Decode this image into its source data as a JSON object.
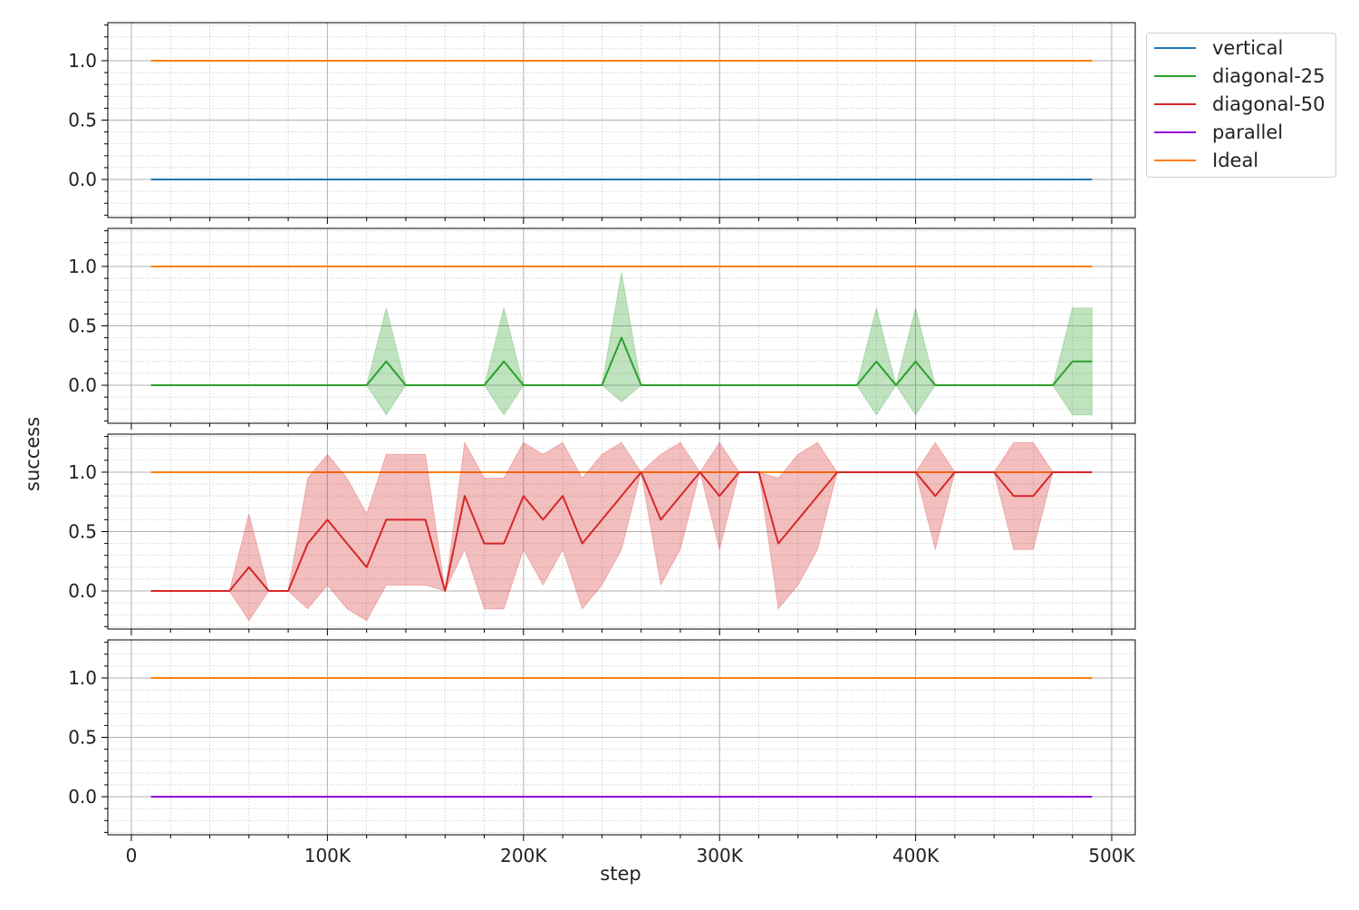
{
  "chart_data": {
    "type": "line",
    "xlabel": "step",
    "ylabel": "success",
    "x_tick_labels": [
      "0",
      "100K",
      "200K",
      "300K",
      "400K",
      "500K"
    ],
    "x_ticks": [
      0,
      100000,
      200000,
      300000,
      400000,
      500000
    ],
    "y_ticks": [
      0.0,
      0.5,
      1.0
    ],
    "y_tick_labels": [
      "0.0",
      "0.5",
      "1.0"
    ],
    "xlim": [
      -12000,
      512000
    ],
    "ylim": [
      -0.32,
      1.32
    ],
    "grid": true,
    "legend_position": "outside-right-top",
    "x": [
      10000,
      20000,
      30000,
      40000,
      50000,
      60000,
      70000,
      80000,
      90000,
      100000,
      110000,
      120000,
      130000,
      140000,
      150000,
      160000,
      170000,
      180000,
      190000,
      200000,
      210000,
      220000,
      230000,
      240000,
      250000,
      260000,
      270000,
      280000,
      290000,
      300000,
      310000,
      320000,
      330000,
      340000,
      350000,
      360000,
      370000,
      380000,
      390000,
      400000,
      410000,
      420000,
      430000,
      440000,
      450000,
      460000,
      470000,
      480000,
      490000
    ],
    "legend": [
      {
        "name": "vertical",
        "color": "#1f77b4"
      },
      {
        "name": "diagonal-25",
        "color": "#2ca02c"
      },
      {
        "name": "diagonal-50",
        "color": "#d62728"
      },
      {
        "name": "parallel",
        "color": "#9400d3"
      },
      {
        "name": "Ideal",
        "color": "#ff7f0e"
      }
    ],
    "panels": [
      {
        "series": [
          {
            "name": "Ideal",
            "color": "#ff7f0e",
            "constant": 1.0
          },
          {
            "name": "vertical",
            "color": "#1f77b4",
            "constant": 0.0
          }
        ]
      },
      {
        "series": [
          {
            "name": "Ideal",
            "color": "#ff7f0e",
            "constant": 1.0
          },
          {
            "name": "diagonal-25",
            "color": "#2ca02c",
            "values": [
              0,
              0,
              0,
              0,
              0,
              0,
              0,
              0,
              0,
              0,
              0,
              0,
              0.2,
              0,
              0,
              0,
              0,
              0,
              0.2,
              0,
              0,
              0,
              0,
              0,
              0.4,
              0,
              0,
              0,
              0,
              0,
              0,
              0,
              0,
              0,
              0,
              0,
              0,
              0.2,
              0,
              0.2,
              0,
              0,
              0,
              0,
              0,
              0,
              0,
              0.2,
              0.2
            ],
            "lower": [
              0,
              0,
              0,
              0,
              0,
              0,
              0,
              0,
              0,
              0,
              0,
              0,
              -0.25,
              0,
              0,
              0,
              0,
              0,
              -0.25,
              0,
              0,
              0,
              0,
              0,
              -0.14,
              0,
              0,
              0,
              0,
              0,
              0,
              0,
              0,
              0,
              0,
              0,
              0,
              -0.25,
              0,
              -0.25,
              0,
              0,
              0,
              0,
              0,
              0,
              0,
              -0.25,
              -0.25
            ],
            "upper": [
              0,
              0,
              0,
              0,
              0,
              0,
              0,
              0,
              0,
              0,
              0,
              0,
              0.65,
              0,
              0,
              0,
              0,
              0,
              0.65,
              0,
              0,
              0,
              0,
              0,
              0.95,
              0,
              0,
              0,
              0,
              0,
              0,
              0,
              0,
              0,
              0,
              0,
              0,
              0.65,
              0,
              0.65,
              0,
              0,
              0,
              0,
              0,
              0,
              0,
              0.65,
              0.65
            ]
          }
        ]
      },
      {
        "series": [
          {
            "name": "Ideal",
            "color": "#ff7f0e",
            "constant": 1.0
          },
          {
            "name": "diagonal-50",
            "color": "#d62728",
            "values": [
              0,
              0,
              0,
              0,
              0,
              0.2,
              0,
              0,
              0.4,
              0.6,
              0.4,
              0.2,
              0.6,
              0.6,
              0.6,
              0,
              0.8,
              0.4,
              0.4,
              0.8,
              0.6,
              0.8,
              0.4,
              0.6,
              0.8,
              1.0,
              0.6,
              0.8,
              1.0,
              0.8,
              1.0,
              1.0,
              0.4,
              0.6,
              0.8,
              1.0,
              1.0,
              1.0,
              1.0,
              1.0,
              0.8,
              1.0,
              1.0,
              1.0,
              0.8,
              0.8,
              1.0,
              1.0,
              1.0
            ],
            "lower": [
              0,
              0,
              0,
              0,
              0,
              -0.25,
              0,
              0,
              -0.15,
              0.05,
              -0.15,
              -0.25,
              0.05,
              0.05,
              0.05,
              0,
              0.35,
              -0.15,
              -0.15,
              0.35,
              0.05,
              0.35,
              -0.15,
              0.05,
              0.35,
              1.0,
              0.05,
              0.35,
              1.0,
              0.35,
              1.0,
              1.0,
              -0.15,
              0.05,
              0.35,
              1.0,
              1.0,
              1.0,
              1.0,
              1.0,
              0.35,
              1.0,
              1.0,
              1.0,
              0.35,
              0.35,
              1.0,
              1.0,
              1.0
            ],
            "upper": [
              0,
              0,
              0,
              0,
              0,
              0.65,
              0,
              0,
              0.95,
              1.15,
              0.95,
              0.65,
              1.15,
              1.15,
              1.15,
              0,
              1.25,
              0.95,
              0.95,
              1.25,
              1.15,
              1.25,
              0.95,
              1.15,
              1.25,
              1.0,
              1.15,
              1.25,
              1.0,
              1.25,
              1.0,
              1.0,
              0.95,
              1.15,
              1.25,
              1.0,
              1.0,
              1.0,
              1.0,
              1.0,
              1.25,
              1.0,
              1.0,
              1.0,
              1.25,
              1.25,
              1.0,
              1.0,
              1.0
            ]
          }
        ]
      },
      {
        "series": [
          {
            "name": "Ideal",
            "color": "#ff7f0e",
            "constant": 1.0
          },
          {
            "name": "parallel",
            "color": "#9400d3",
            "constant": 0.0
          }
        ]
      }
    ]
  }
}
